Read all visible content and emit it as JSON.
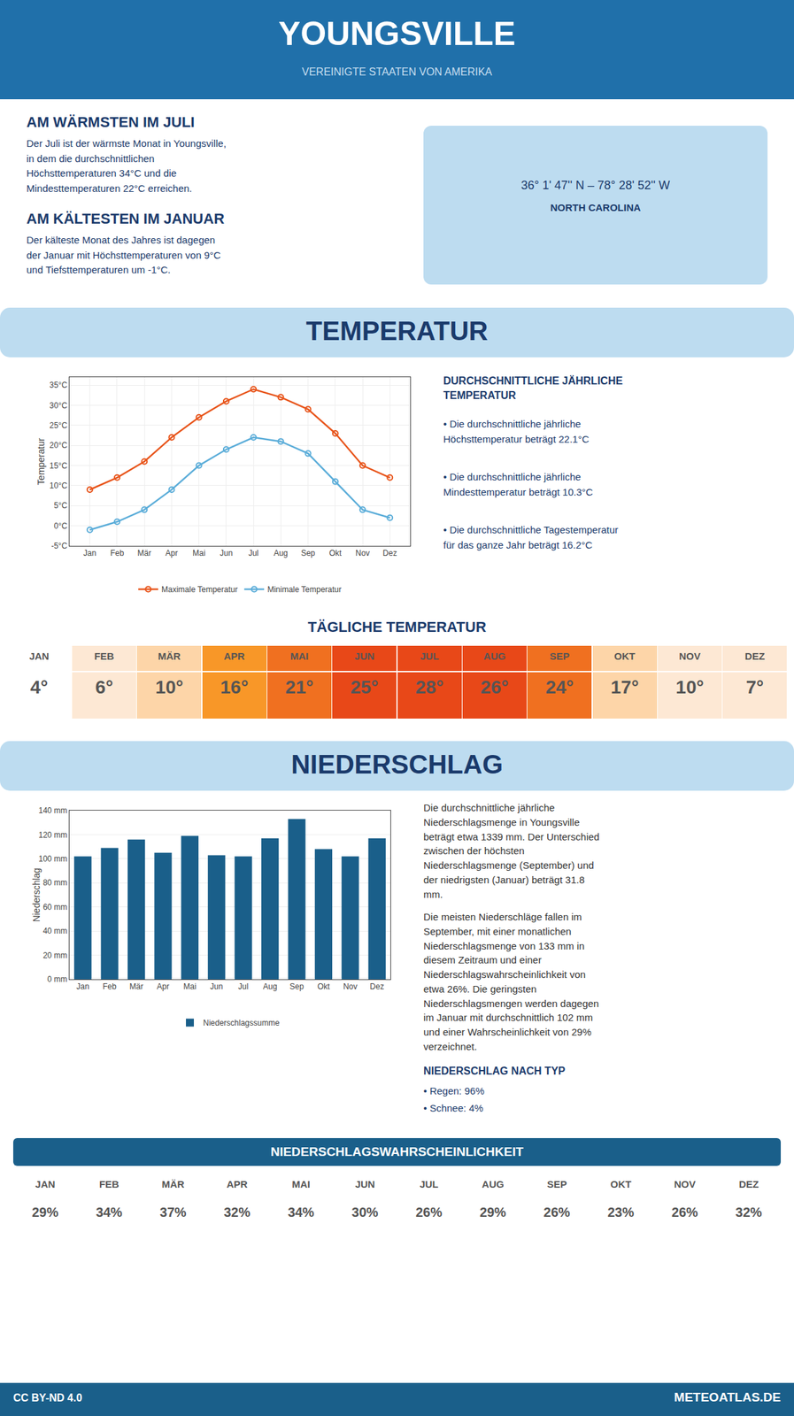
{
  "title": "YOUNGSVILLE",
  "subtitle": "VEREINIGTE STAATEN VON AMERIKA",
  "annotations": [
    "AM WÄRMSTEN IM JULI",
    "Der Juli ist der wärmste Monat in Youngsville,\nin dem die durchschnittlichen\nHöchsttemperaturen 34°C und die\nMindesttemperaturen 22°C erreichen.",
    "AM KÄLTESTEN IM JANUAR",
    "Der kälteste Monat des Jahres ist dagegen\nder Januar mit Höchsttemperaturen von 9°C\nund Tiefsttemperaturen um -1°C.",
    "36° 1' 47'' N – 78° 28' 52'' W",
    "NORTH CAROLINA",
    "CC BY-ND 4.0",
    "METEOATLAS.DE"
  ],
  "chart_data": [
    {
      "type": "line",
      "title": "TEMPERATUR",
      "categories": [
        "Jan",
        "Feb",
        "Mär",
        "Apr",
        "Mai",
        "Jun",
        "Jul",
        "Aug",
        "Sep",
        "Okt",
        "Nov",
        "Dez"
      ],
      "ylabel": "Temperatur",
      "ylim": [
        -5,
        37
      ],
      "yticks": [
        {
          "value": -5,
          "label": "-5°C"
        },
        {
          "value": 0,
          "label": "0°C"
        },
        {
          "value": 5,
          "label": "5°C"
        },
        {
          "value": 10,
          "label": "10°C"
        },
        {
          "value": 15,
          "label": "15°C"
        },
        {
          "value": 20,
          "label": "20°C"
        },
        {
          "value": 25,
          "label": "25°C"
        },
        {
          "value": 30,
          "label": "30°C"
        },
        {
          "value": 35,
          "label": "35°C"
        }
      ],
      "grid": true,
      "legend": "bottom",
      "marker": "circle-open",
      "series": [
        {
          "name": "Maximale Temperatur",
          "color": "#e8541a",
          "values": [
            9,
            12,
            16,
            22,
            27,
            31,
            34,
            32,
            29,
            23,
            15,
            12
          ]
        },
        {
          "name": "Minimale Temperatur",
          "color": "#5badd9",
          "values": [
            -1,
            1,
            4,
            9,
            15,
            19,
            22,
            21,
            18,
            11,
            4,
            2
          ]
        }
      ],
      "annotations": [
        "DURCHSCHNITTLICHE JÄHRLICHE\nTEMPERATUR",
        "• Die durchschnittliche jährliche\nHöchsttemperatur beträgt 22.1°C",
        "• Die durchschnittliche jährliche\nMindesttemperatur beträgt 10.3°C",
        "• Die durchschnittliche Tagestemperatur\nfür das ganze Jahr beträgt 16.2°C"
      ]
    },
    {
      "type": "table",
      "title": "TÄGLICHE TEMPERATUR",
      "categories": [
        "JAN",
        "FEB",
        "MÄR",
        "APR",
        "MAI",
        "JUN",
        "JUL",
        "AUG",
        "SEP",
        "OKT",
        "NOV",
        "DEZ"
      ],
      "values": [
        4,
        6,
        10,
        16,
        21,
        25,
        28,
        26,
        24,
        17,
        10,
        7
      ],
      "value_labels": [
        "4°",
        "6°",
        "10°",
        "16°",
        "21°",
        "25°",
        "28°",
        "26°",
        "24°",
        "17°",
        "10°",
        "7°"
      ],
      "data_labels": true,
      "colors": [
        "#ffffff",
        "#fde8d4",
        "#fdd5a8",
        "#f89728",
        "#f07020",
        "#e84818",
        "#e84818",
        "#e84818",
        "#f07020",
        "#fdd5a8",
        "#fde8d4",
        "#fde8d4"
      ]
    },
    {
      "type": "bar",
      "title": "NIEDERSCHLAG",
      "categories": [
        "Jan",
        "Feb",
        "Mär",
        "Apr",
        "Mai",
        "Jun",
        "Jul",
        "Aug",
        "Sep",
        "Okt",
        "Nov",
        "Dez"
      ],
      "ylabel": "Niederschlag",
      "ylim": [
        0,
        140
      ],
      "yticks": [
        {
          "value": 0,
          "label": "0 mm"
        },
        {
          "value": 20,
          "label": "20 mm"
        },
        {
          "value": 40,
          "label": "40 mm"
        },
        {
          "value": 60,
          "label": "60 mm"
        },
        {
          "value": 80,
          "label": "80 mm"
        },
        {
          "value": 100,
          "label": "100 mm"
        },
        {
          "value": 120,
          "label": "120 mm"
        },
        {
          "value": 140,
          "label": "140 mm"
        }
      ],
      "grid": "y",
      "legend": "bottom",
      "series": [
        {
          "name": "Niederschlagssumme",
          "color": "#1a5f8a",
          "values": [
            102,
            109,
            116,
            105,
            119,
            103,
            102,
            117,
            133,
            108,
            102,
            117
          ]
        }
      ],
      "annotations": [
        "Die durchschnittliche jährliche\nNiederschlagsmenge in Youngsville\nbeträgt etwa 1339 mm. Der Unterschied\nzwischen der höchsten\nNiederschlagsmenge (September) und\nder niedrigsten (Januar) beträgt 31.8\nmm.",
        "Die meisten Niederschläge fallen im\nSeptember, mit einer monatlichen\nNiederschlagsmenge von 133 mm in\ndiesem Zeitraum und einer\nNiederschlagswahrscheinlichkeit von\netwa 26%. Die geringsten\nNiederschlagsmengen werden dagegen\nim Januar mit durchschnittlich 102 mm\nund einer Wahrscheinlichkeit von 29%\nverzeichnet.",
        "NIEDERSCHLAG NACH TYP",
        "• Regen: 96%",
        "• Schnee: 4%"
      ]
    },
    {
      "type": "table",
      "title": "NIEDERSCHLAGSWAHRSCHEINLICHKEIT",
      "categories": [
        "JAN",
        "FEB",
        "MÄR",
        "APR",
        "MAI",
        "JUN",
        "JUL",
        "AUG",
        "SEP",
        "OKT",
        "NOV",
        "DEZ"
      ],
      "values": [
        29,
        34,
        37,
        32,
        34,
        30,
        26,
        29,
        26,
        23,
        26,
        32
      ],
      "value_labels": [
        "29%",
        "34%",
        "37%",
        "32%",
        "34%",
        "30%",
        "26%",
        "29%",
        "26%",
        "23%",
        "26%",
        "32%"
      ],
      "data_labels": true
    }
  ]
}
